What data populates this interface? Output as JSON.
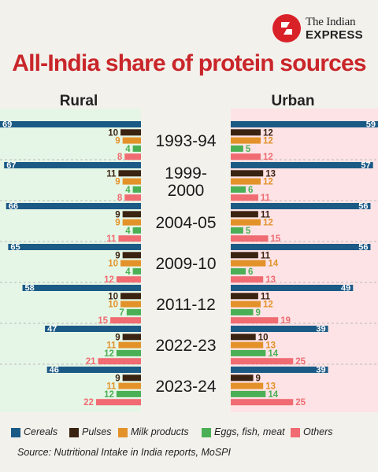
{
  "brand": {
    "line1": "The Indian",
    "line2": "EXPRESS"
  },
  "title": "All-India share of protein sources",
  "legend": [
    {
      "label": "Cereals",
      "color": "#1c5a86"
    },
    {
      "label": "Pulses",
      "color": "#3b2312"
    },
    {
      "label": "Milk products",
      "color": "#e3922a"
    },
    {
      "label": "Eggs, fish, meat",
      "color": "#4bb055"
    },
    {
      "label": "Others",
      "color": "#f06b72"
    }
  ],
  "source": "Source: Nutritional Intake in India reports, MoSPI",
  "colors": {
    "rural_bg": "#e6f6e6",
    "urban_bg": "#fde3e5",
    "center_bg": "#f3f1ec"
  },
  "chart_data": {
    "type": "bar",
    "title": "All-India share of protein sources",
    "panels": [
      "Rural",
      "Urban"
    ],
    "categories": [
      "1993-94",
      "1999-2000",
      "2004-05",
      "2009-10",
      "2011-12",
      "2022-23",
      "2023-24"
    ],
    "category_display": [
      [
        "1993-94"
      ],
      [
        "1999-",
        "2000"
      ],
      [
        "2004-05"
      ],
      [
        "2009-10"
      ],
      [
        "2011-12"
      ],
      [
        "2022-23"
      ],
      [
        "2023-24"
      ]
    ],
    "series_names": [
      "Cereals",
      "Pulses",
      "Milk products",
      "Eggs, fish, meat",
      "Others"
    ],
    "rural": {
      "Cereals": [
        69,
        67,
        66,
        65,
        58,
        47,
        46
      ],
      "Pulses": [
        10,
        11,
        9,
        9,
        10,
        9,
        9
      ],
      "Milk products": [
        9,
        9,
        9,
        10,
        10,
        11,
        11
      ],
      "Eggs, fish, meat": [
        4,
        4,
        4,
        4,
        7,
        12,
        12
      ],
      "Others": [
        8,
        8,
        11,
        12,
        15,
        21,
        22
      ]
    },
    "urban": {
      "Cereals": [
        59,
        57,
        56,
        56,
        49,
        39,
        39
      ],
      "Pulses": [
        12,
        13,
        11,
        11,
        11,
        10,
        9
      ],
      "Milk products": [
        12,
        12,
        12,
        14,
        12,
        13,
        13
      ],
      "Eggs, fish, meat": [
        5,
        6,
        5,
        6,
        9,
        14,
        14
      ],
      "Others": [
        12,
        11,
        15,
        13,
        19,
        25,
        25
      ]
    }
  }
}
